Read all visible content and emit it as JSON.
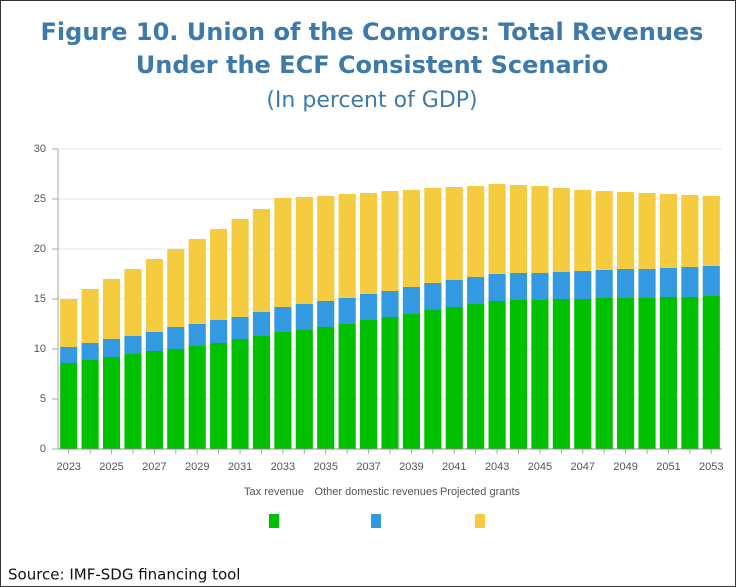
{
  "chart_data": {
    "type": "stacked_bar",
    "title": "Figure 10. Union of the Comoros: Total Revenues",
    "title_line2": "Under the ECF Consistent Scenario",
    "subtitle": "(In percent of GDP)",
    "source": "Source: IMF-SDG financing tool",
    "categories": [
      "2023",
      null,
      "2025",
      null,
      "2027",
      null,
      "2029",
      null,
      "2031",
      null,
      "2033",
      null,
      "2035",
      null,
      "2037",
      null,
      "2039",
      null,
      "2041",
      null,
      "2043",
      null,
      "2045",
      null,
      "2047",
      null,
      "2049",
      null,
      "2051",
      null,
      "2053"
    ],
    "series": [
      {
        "name": "Tax revenue",
        "color": "#00c000",
        "values": [
          8.6,
          8.9,
          9.2,
          9.5,
          9.8,
          10.0,
          10.3,
          10.6,
          11.0,
          11.3,
          11.7,
          11.9,
          12.2,
          12.5,
          12.9,
          13.2,
          13.5,
          13.9,
          14.2,
          14.5,
          14.8,
          14.9,
          14.9,
          15.0,
          15.0,
          15.1,
          15.1,
          15.1,
          15.2,
          15.2,
          15.3
        ]
      },
      {
        "name": "Other domestic revenues",
        "color": "#3399e0",
        "values": [
          1.6,
          1.7,
          1.8,
          1.8,
          1.9,
          2.2,
          2.2,
          2.3,
          2.2,
          2.4,
          2.5,
          2.6,
          2.6,
          2.6,
          2.6,
          2.6,
          2.7,
          2.7,
          2.7,
          2.7,
          2.7,
          2.7,
          2.7,
          2.7,
          2.8,
          2.8,
          2.9,
          2.9,
          2.9,
          3.0,
          3.0
        ]
      },
      {
        "name": "Projected grants",
        "color": "#f5cc40",
        "values": [
          4.8,
          5.4,
          6.0,
          6.7,
          7.3,
          7.8,
          8.5,
          9.1,
          9.8,
          10.3,
          10.9,
          10.7,
          10.5,
          10.4,
          10.1,
          10.0,
          9.7,
          9.5,
          9.3,
          9.1,
          9.0,
          8.8,
          8.7,
          8.4,
          8.1,
          7.9,
          7.7,
          7.6,
          7.4,
          7.2,
          7.0
        ]
      }
    ],
    "ylim": [
      0,
      30
    ],
    "yticks": [
      0,
      5,
      10,
      15,
      20,
      25,
      30
    ],
    "grid": true
  }
}
